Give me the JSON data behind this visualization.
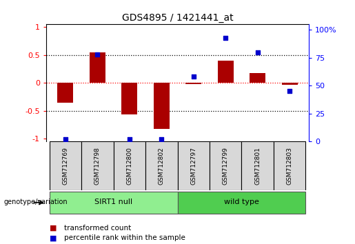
{
  "title": "GDS4895 / 1421441_at",
  "samples": [
    "GSM712769",
    "GSM712798",
    "GSM712800",
    "GSM712802",
    "GSM712797",
    "GSM712799",
    "GSM712801",
    "GSM712803"
  ],
  "transformed_count": [
    -0.35,
    0.55,
    -0.57,
    -0.82,
    -0.02,
    0.4,
    0.18,
    -0.03
  ],
  "percentile_rank": [
    2,
    78,
    2,
    2,
    58,
    93,
    80,
    45
  ],
  "group_labels": [
    "SIRT1 null",
    "wild type"
  ],
  "group_colors": [
    "#90ee90",
    "#50cd50"
  ],
  "bar_color": "#aa0000",
  "dot_color": "#0000cc",
  "ylim": [
    -1.05,
    1.05
  ],
  "right_ylim": [
    0,
    105
  ],
  "right_yticks": [
    0,
    25,
    50,
    75,
    100
  ],
  "right_yticklabels": [
    "0",
    "25",
    "50",
    "75",
    "100%"
  ],
  "left_yticks": [
    -1,
    -0.5,
    0,
    0.5,
    1
  ],
  "left_yticklabels": [
    "-1",
    "-0.5",
    "0",
    "0.5",
    "1"
  ],
  "dotted_lines_black": [
    -0.5,
    0.5
  ],
  "dotted_line_red": 0,
  "legend_items": [
    {
      "color": "#aa0000",
      "label": "transformed count"
    },
    {
      "color": "#0000cc",
      "label": "percentile rank within the sample"
    }
  ],
  "bar_width": 0.5,
  "sirt1_null_count": 4,
  "wild_type_count": 4
}
